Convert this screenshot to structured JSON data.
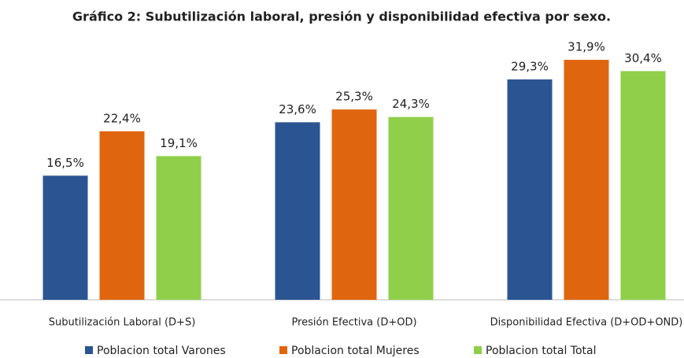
{
  "chart_data": {
    "type": "bar",
    "title": "Gráfico 2: Subutilización laboral, presión y disponibilidad efectiva por sexo.",
    "categories": [
      "Subutilización Laboral (D+S)",
      "Presión Efectiva (D+OD)",
      "Disponibilidad Efectiva (D+OD+OND)"
    ],
    "series": [
      {
        "name": "Poblacion total Varones",
        "color": "#2b5592",
        "values": [
          16.5,
          23.6,
          29.3
        ],
        "value_labels": [
          "16,5%",
          "23,6%",
          "29,3%"
        ]
      },
      {
        "name": "Poblacion total Mujeres",
        "color": "#e0650f",
        "values": [
          22.4,
          25.3,
          31.9
        ],
        "value_labels": [
          "22,4%",
          "25,3%",
          "31,9%"
        ]
      },
      {
        "name": "Poblacion total Total",
        "color": "#8fcf4a",
        "values": [
          19.1,
          24.3,
          30.4
        ],
        "value_labels": [
          "19,1%",
          "24,3%",
          "30,4%"
        ]
      }
    ],
    "legend": "bottom"
  }
}
